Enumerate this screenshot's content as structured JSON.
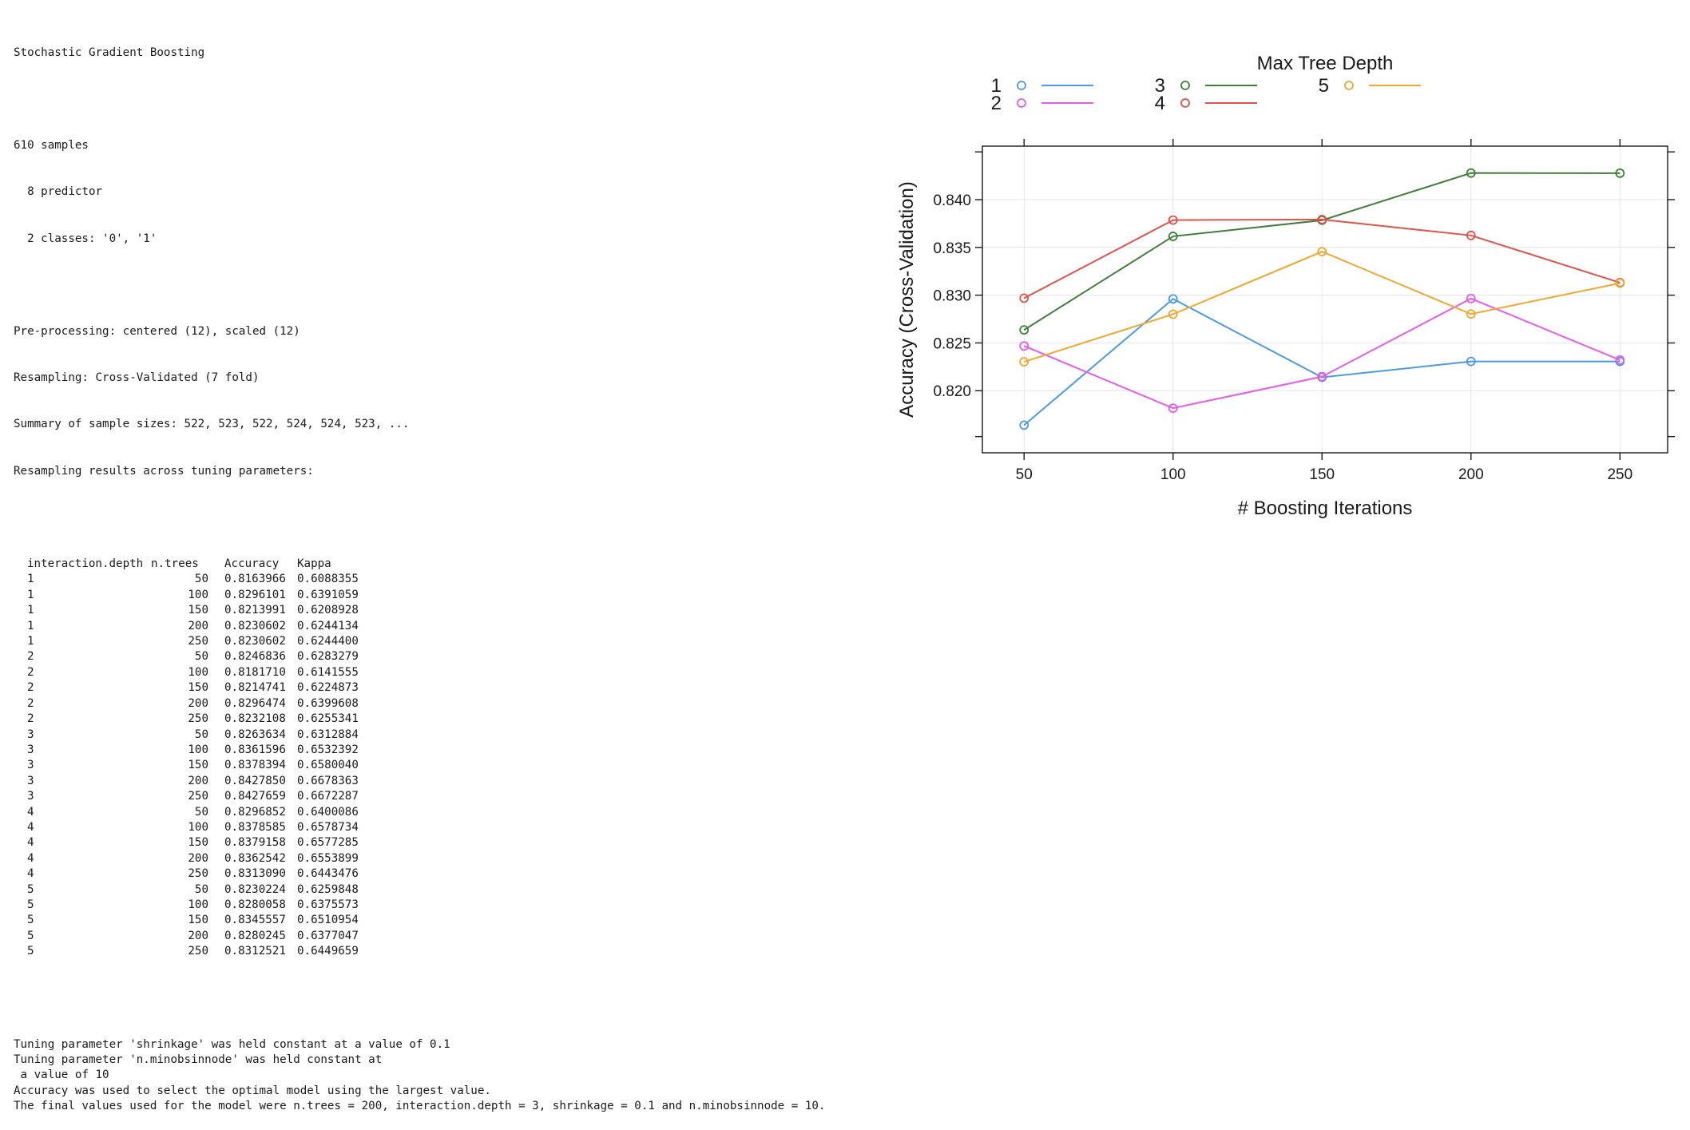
{
  "output": {
    "model_name": "Stochastic Gradient Boosting",
    "samples_line": "610 samples",
    "predictor_line": "  8 predictor",
    "classes_line": "  2 classes: '0', '1'",
    "preprocessing_line": "Pre-processing: centered (12), scaled (12)",
    "resampling_line": "Resampling: Cross-Validated (7 fold)",
    "sample_sizes_line": "Summary of sample sizes: 522, 523, 522, 524, 524, 523, ...",
    "results_heading": "Resampling results across tuning parameters:",
    "table_headers": [
      "interaction.depth",
      "n.trees",
      "Accuracy",
      "Kappa"
    ],
    "table_rows": [
      [
        "1",
        "50",
        "0.8163966",
        "0.6088355"
      ],
      [
        "1",
        "100",
        "0.8296101",
        "0.6391059"
      ],
      [
        "1",
        "150",
        "0.8213991",
        "0.6208928"
      ],
      [
        "1",
        "200",
        "0.8230602",
        "0.6244134"
      ],
      [
        "1",
        "250",
        "0.8230602",
        "0.6244400"
      ],
      [
        "2",
        "50",
        "0.8246836",
        "0.6283279"
      ],
      [
        "2",
        "100",
        "0.8181710",
        "0.6141555"
      ],
      [
        "2",
        "150",
        "0.8214741",
        "0.6224873"
      ],
      [
        "2",
        "200",
        "0.8296474",
        "0.6399608"
      ],
      [
        "2",
        "250",
        "0.8232108",
        "0.6255341"
      ],
      [
        "3",
        "50",
        "0.8263634",
        "0.6312884"
      ],
      [
        "3",
        "100",
        "0.8361596",
        "0.6532392"
      ],
      [
        "3",
        "150",
        "0.8378394",
        "0.6580040"
      ],
      [
        "3",
        "200",
        "0.8427850",
        "0.6678363"
      ],
      [
        "3",
        "250",
        "0.8427659",
        "0.6672287"
      ],
      [
        "4",
        "50",
        "0.8296852",
        "0.6400086"
      ],
      [
        "4",
        "100",
        "0.8378585",
        "0.6578734"
      ],
      [
        "4",
        "150",
        "0.8379158",
        "0.6577285"
      ],
      [
        "4",
        "200",
        "0.8362542",
        "0.6553899"
      ],
      [
        "4",
        "250",
        "0.8313090",
        "0.6443476"
      ],
      [
        "5",
        "50",
        "0.8230224",
        "0.6259848"
      ],
      [
        "5",
        "100",
        "0.8280058",
        "0.6375573"
      ],
      [
        "5",
        "150",
        "0.8345557",
        "0.6510954"
      ],
      [
        "5",
        "200",
        "0.8280245",
        "0.6377047"
      ],
      [
        "5",
        "250",
        "0.8312521",
        "0.6449659"
      ]
    ],
    "footer_lines": [
      "Tuning parameter 'shrinkage' was held constant at a value of 0.1",
      "Tuning parameter 'n.minobsinnode' was held constant at",
      " a value of 10",
      "Accuracy was used to select the optimal model using the largest value.",
      "The final values used for the model were n.trees = 200, interaction.depth = 3, shrinkage = 0.1 and n.minobsinnode = 10."
    ]
  },
  "chart_data": {
    "type": "line",
    "legend_title": "Max Tree Depth",
    "xlabel": "# Boosting Iterations",
    "ylabel": "Accuracy (Cross-Validation)",
    "x": [
      50,
      100,
      150,
      200,
      250
    ],
    "x_ticks": [
      "50",
      "100",
      "150",
      "200",
      "250"
    ],
    "y_ticks": [
      "0.820",
      "0.825",
      "0.830",
      "0.835",
      "0.840"
    ],
    "y_tick_values": [
      0.82,
      0.825,
      0.83,
      0.835,
      0.84
    ],
    "xlim": [
      36,
      266
    ],
    "ylim": [
      0.8135,
      0.8456
    ],
    "grid": true,
    "series": [
      {
        "name": "1",
        "color": "#4a9be6",
        "values": [
          0.8163966,
          0.8296101,
          0.8213991,
          0.8230602,
          0.8230602
        ]
      },
      {
        "name": "2",
        "color": "#e65ce6",
        "values": [
          0.8246836,
          0.818171,
          0.8214741,
          0.8296474,
          0.8232108
        ]
      },
      {
        "name": "3",
        "color": "#3f7f3a",
        "values": [
          0.8263634,
          0.8361596,
          0.8378394,
          0.842785,
          0.8427659
        ]
      },
      {
        "name": "4",
        "color": "#e0524a",
        "values": [
          0.8296852,
          0.8378585,
          0.8379158,
          0.8362542,
          0.831309
        ]
      },
      {
        "name": "5",
        "color": "#f0a830",
        "values": [
          0.8230224,
          0.8280058,
          0.8345557,
          0.8280245,
          0.8312521
        ]
      }
    ]
  }
}
